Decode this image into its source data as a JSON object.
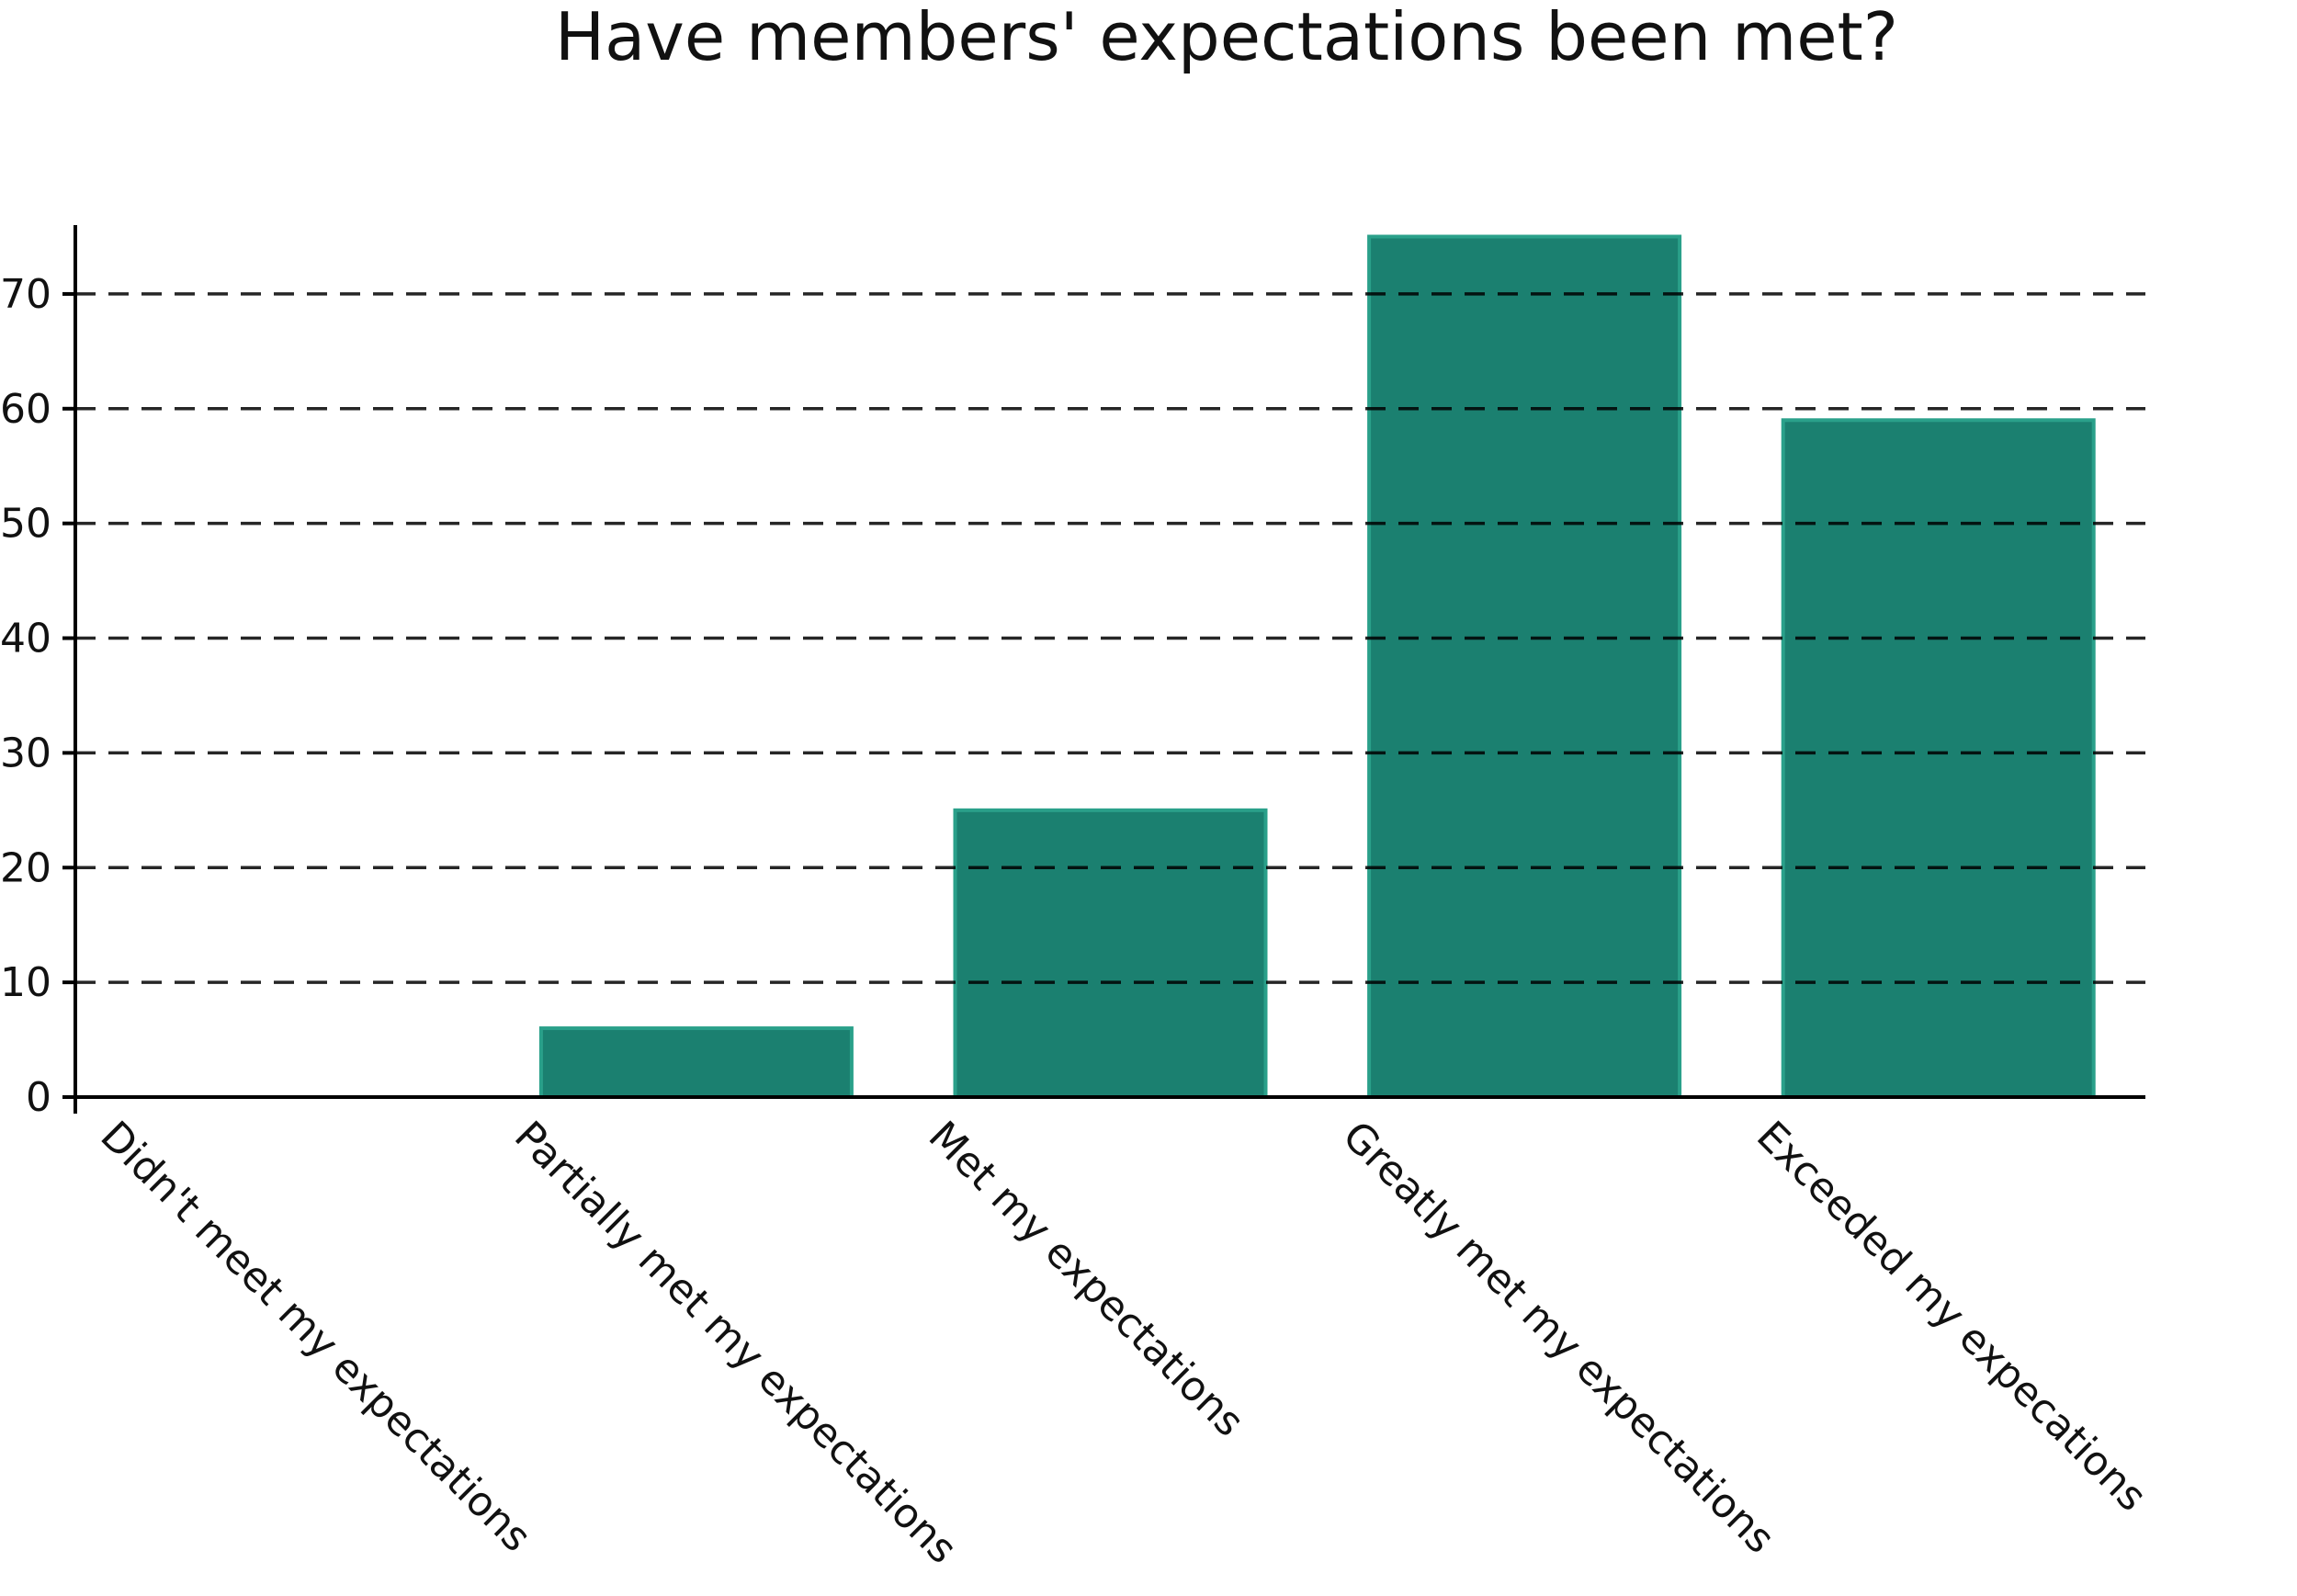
{
  "chart_data": {
    "type": "bar",
    "title": "Have members' expectations been met?",
    "xlabel": "",
    "ylabel": "",
    "categories": [
      "Didn't meet my expectations",
      "Partially met my expectations",
      "Met my expectations",
      "Greatly met my expectations",
      "Exceeded my expecations"
    ],
    "values": [
      0,
      6,
      25,
      75,
      59
    ],
    "ylim": [
      0,
      76
    ],
    "yticks": [
      0,
      10,
      20,
      30,
      40,
      50,
      60,
      70
    ],
    "grid": "horizontal dashed",
    "legend": "none",
    "bar_color": "#1b8070",
    "bar_edge_color": "#2aa08a",
    "axis_color": "#000000"
  }
}
